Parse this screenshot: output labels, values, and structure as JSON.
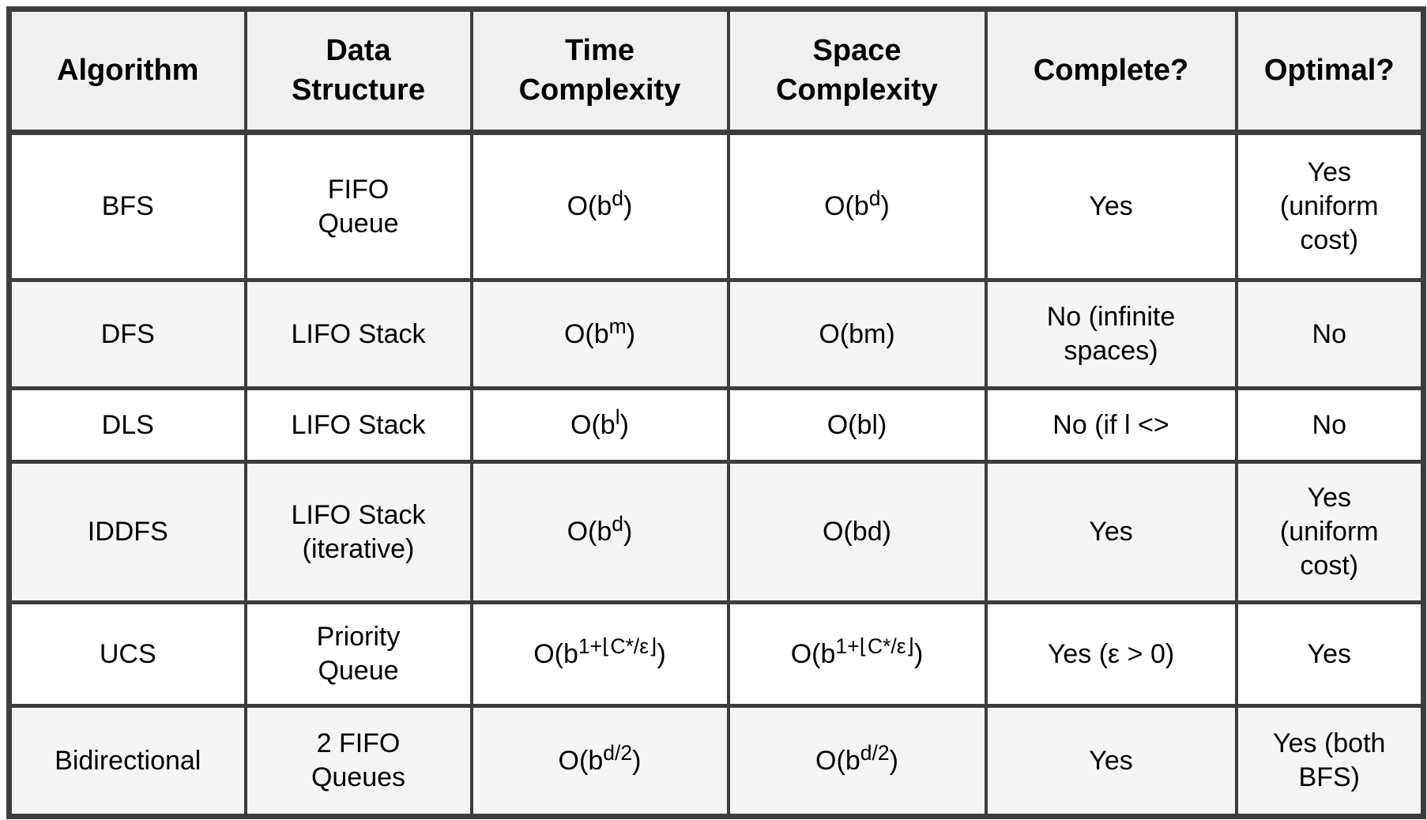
{
  "colors": {
    "border": "#3d3d3d",
    "header_bg": "#f0f0f0",
    "stripe_bg": "#f5f5f5",
    "row_bg": "#ffffff",
    "text": "#000000"
  },
  "table": {
    "title": "Search algorithm comparison table",
    "columns": [
      [
        {
          "t": "Algorithm"
        }
      ],
      [
        {
          "t": "Data"
        },
        {
          "br": true
        },
        {
          "t": "Structure"
        }
      ],
      [
        {
          "t": "Time"
        },
        {
          "br": true
        },
        {
          "t": "Complexity"
        }
      ],
      [
        {
          "t": "Space"
        },
        {
          "br": true
        },
        {
          "t": "Complexity"
        }
      ],
      [
        {
          "t": "Complete?"
        }
      ],
      [
        {
          "t": "Optimal?"
        }
      ]
    ],
    "rows": [
      {
        "cells": [
          [
            {
              "t": "BFS"
            }
          ],
          [
            {
              "t": "FIFO"
            },
            {
              "br": true
            },
            {
              "t": "Queue"
            }
          ],
          [
            {
              "t": "O(b"
            },
            {
              "t": "d",
              "sup": true
            },
            {
              "t": ")"
            }
          ],
          [
            {
              "t": "O(b"
            },
            {
              "t": "d",
              "sup": true
            },
            {
              "t": ")"
            }
          ],
          [
            {
              "t": "Yes"
            }
          ],
          [
            {
              "t": "Yes"
            },
            {
              "br": true
            },
            {
              "t": "(uniform"
            },
            {
              "br": true
            },
            {
              "t": "cost)"
            }
          ]
        ]
      },
      {
        "cells": [
          [
            {
              "t": "DFS"
            }
          ],
          [
            {
              "t": "LIFO Stack"
            }
          ],
          [
            {
              "t": "O(b"
            },
            {
              "t": "m",
              "sup": true
            },
            {
              "t": ")"
            }
          ],
          [
            {
              "t": "O(bm)"
            }
          ],
          [
            {
              "t": "No (infinite"
            },
            {
              "br": true
            },
            {
              "t": "spaces)"
            }
          ],
          [
            {
              "t": "No"
            }
          ]
        ]
      },
      {
        "cells": [
          [
            {
              "t": "DLS"
            }
          ],
          [
            {
              "t": "LIFO Stack"
            }
          ],
          [
            {
              "t": "O(b"
            },
            {
              "t": "l",
              "sup": true
            },
            {
              "t": ")"
            }
          ],
          [
            {
              "t": "O(bl)"
            }
          ],
          [
            {
              "t": "No (if l <>"
            }
          ],
          [
            {
              "t": "No"
            }
          ]
        ]
      },
      {
        "cells": [
          [
            {
              "t": "IDDFS"
            }
          ],
          [
            {
              "t": "LIFO Stack"
            },
            {
              "br": true
            },
            {
              "t": "(iterative)"
            }
          ],
          [
            {
              "t": "O(b"
            },
            {
              "t": "d",
              "sup": true
            },
            {
              "t": ")"
            }
          ],
          [
            {
              "t": "O(bd)"
            }
          ],
          [
            {
              "t": "Yes"
            }
          ],
          [
            {
              "t": "Yes"
            },
            {
              "br": true
            },
            {
              "t": "(uniform"
            },
            {
              "br": true
            },
            {
              "t": "cost)"
            }
          ]
        ]
      },
      {
        "cells": [
          [
            {
              "t": "UCS"
            }
          ],
          [
            {
              "t": "Priority"
            },
            {
              "br": true
            },
            {
              "t": "Queue"
            }
          ],
          [
            {
              "t": "O(b"
            },
            {
              "t": "1+⌊C*/ε⌋",
              "sup": true
            },
            {
              "t": ")"
            }
          ],
          [
            {
              "t": "O(b"
            },
            {
              "t": "1+⌊C*/ε⌋",
              "sup": true
            },
            {
              "t": ")"
            }
          ],
          [
            {
              "t": "Yes (ε > 0)"
            }
          ],
          [
            {
              "t": "Yes"
            }
          ]
        ]
      },
      {
        "cells": [
          [
            {
              "t": "Bidirectional"
            }
          ],
          [
            {
              "t": "2 FIFO"
            },
            {
              "br": true
            },
            {
              "t": "Queues"
            }
          ],
          [
            {
              "t": "O(b"
            },
            {
              "t": "d/2",
              "sup": true
            },
            {
              "t": ")"
            }
          ],
          [
            {
              "t": "O(b"
            },
            {
              "t": "d/2",
              "sup": true
            },
            {
              "t": ")"
            }
          ],
          [
            {
              "t": "Yes"
            }
          ],
          [
            {
              "t": "Yes (both"
            },
            {
              "br": true
            },
            {
              "t": "BFS)"
            }
          ]
        ]
      }
    ]
  }
}
